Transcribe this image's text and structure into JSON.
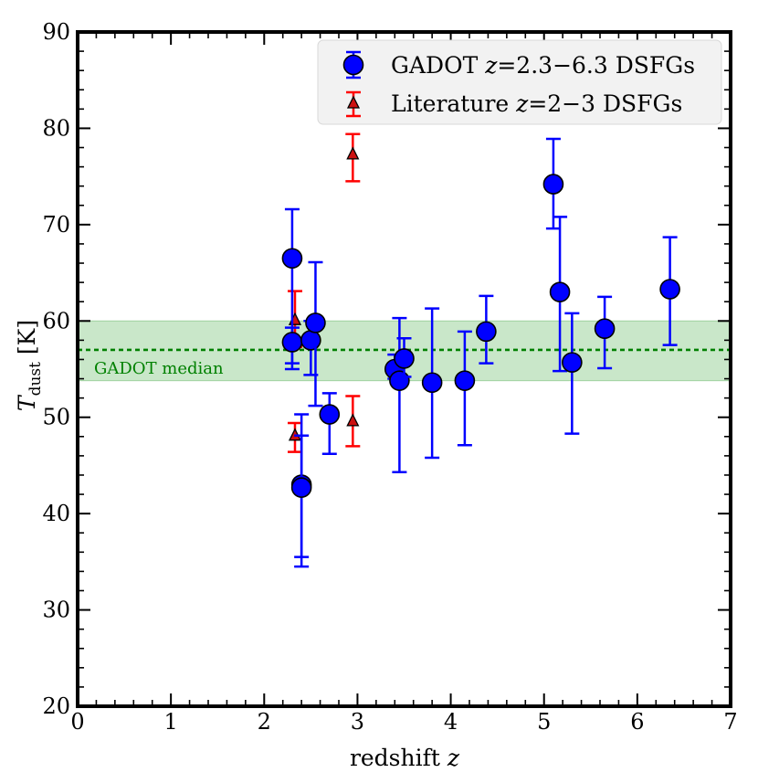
{
  "chart_data": {
    "type": "scatter",
    "title": "",
    "xlabel": "redshift",
    "xlabel_var": "z",
    "ylabel_var": "T",
    "ylabel_sub": "dust",
    "ylabel_unit": "[K]",
    "xlim": [
      0,
      7
    ],
    "ylim": [
      20,
      90
    ],
    "xticks": [
      "0",
      "1",
      "2",
      "3",
      "4",
      "5",
      "6",
      "7"
    ],
    "yticks": [
      "20",
      "30",
      "40",
      "50",
      "60",
      "70",
      "80",
      "90"
    ],
    "grid": false,
    "legend_position": "top-right",
    "median": {
      "label": "GADOT median",
      "value": 57.0,
      "band": [
        53.8,
        60.0
      ],
      "color": "#008000",
      "band_color": "#bfe3bf"
    },
    "series": [
      {
        "name": "GADOT",
        "legend_prefix": "GADOT ",
        "legend_var": "z",
        "legend_suffix": "=2.3−6.3 DSFGs",
        "marker": "circle",
        "color": "#0000ff",
        "points": [
          {
            "x": 2.3,
            "y": 66.5,
            "ylo": 55.0,
            "yhi": 71.6
          },
          {
            "x": 2.3,
            "y": 57.8,
            "ylo": 55.6,
            "yhi": 59.3
          },
          {
            "x": 2.4,
            "y": 43.0,
            "ylo": 35.5,
            "yhi": 50.3
          },
          {
            "x": 2.4,
            "y": 42.7,
            "ylo": 34.5,
            "yhi": 48.1
          },
          {
            "x": 2.5,
            "y": 58.0,
            "ylo": 54.4,
            "yhi": 60.0
          },
          {
            "x": 2.55,
            "y": 59.8,
            "ylo": 51.2,
            "yhi": 66.1
          },
          {
            "x": 2.7,
            "y": 50.3,
            "ylo": 46.2,
            "yhi": 52.5
          },
          {
            "x": 3.4,
            "y": 55.0,
            "ylo": 54.0,
            "yhi": 56.5
          },
          {
            "x": 3.45,
            "y": 53.8,
            "ylo": 44.3,
            "yhi": 60.3
          },
          {
            "x": 3.5,
            "y": 56.1,
            "ylo": 54.2,
            "yhi": 58.2
          },
          {
            "x": 3.8,
            "y": 53.6,
            "ylo": 45.8,
            "yhi": 61.3
          },
          {
            "x": 4.15,
            "y": 53.8,
            "ylo": 47.1,
            "yhi": 58.9
          },
          {
            "x": 4.38,
            "y": 58.9,
            "ylo": 55.6,
            "yhi": 62.6
          },
          {
            "x": 5.1,
            "y": 74.2,
            "ylo": 69.6,
            "yhi": 78.9
          },
          {
            "x": 5.17,
            "y": 63.0,
            "ylo": 54.8,
            "yhi": 70.8
          },
          {
            "x": 5.3,
            "y": 55.7,
            "ylo": 48.3,
            "yhi": 60.8
          },
          {
            "x": 5.65,
            "y": 59.2,
            "ylo": 55.1,
            "yhi": 62.5
          },
          {
            "x": 6.35,
            "y": 63.3,
            "ylo": 57.5,
            "yhi": 68.7
          }
        ]
      },
      {
        "name": "Literature",
        "legend_prefix": "Literature ",
        "legend_var": "z",
        "legend_suffix": "=2−3 DSFGs",
        "marker": "triangle",
        "color": "#ff0000",
        "points": [
          {
            "x": 2.33,
            "y": 60.2,
            "ylo": 57.3,
            "yhi": 63.1
          },
          {
            "x": 2.33,
            "y": 48.2,
            "ylo": 46.4,
            "yhi": 49.4
          },
          {
            "x": 2.95,
            "y": 49.7,
            "ylo": 47.0,
            "yhi": 52.2
          },
          {
            "x": 2.95,
            "y": 77.4,
            "ylo": 74.5,
            "yhi": 79.4
          }
        ]
      }
    ]
  }
}
